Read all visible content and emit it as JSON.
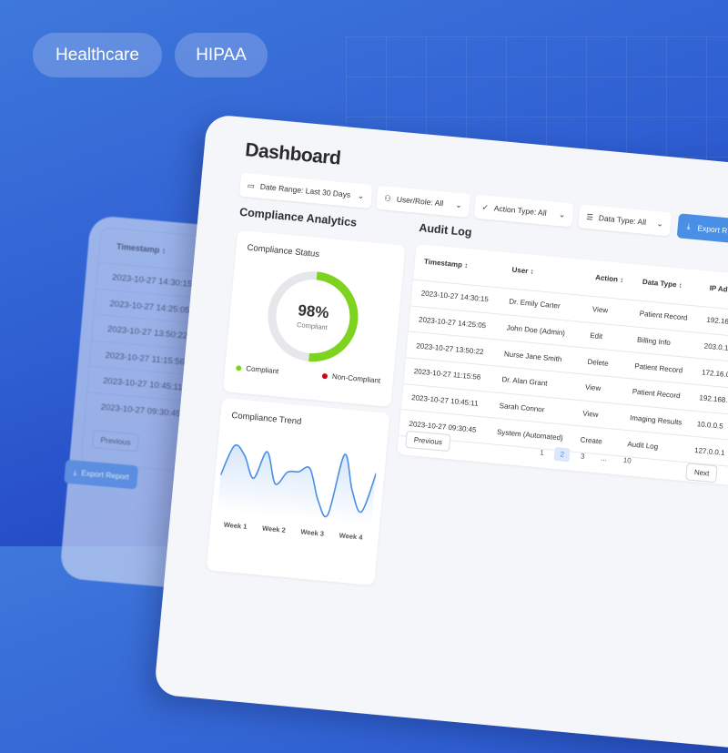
{
  "tags": [
    "Healthcare",
    "HIPAA"
  ],
  "background_card": {
    "header": "Timestamp",
    "rows": [
      "2023-10-27 14:30:15",
      "2023-10-27 14:25:05",
      "2023-10-27 13:50:22",
      "2023-10-27 11:15:56",
      "2023-10-27 10:45:11",
      "2023-10-27 09:30:45"
    ],
    "previous": "Previous",
    "export": "Export Report"
  },
  "dashboard": {
    "title": "Dashboard",
    "filters": [
      {
        "icon": "calendar-icon",
        "label": "Date Range: Last 30 Days"
      },
      {
        "icon": "user-icon",
        "label": "User/Role: All"
      },
      {
        "icon": "check-circle-icon",
        "label": "Action Type: All"
      },
      {
        "icon": "database-icon",
        "label": "Data Type: All"
      }
    ],
    "export_label": "Export R",
    "analytics_title": "Compliance Analytics",
    "status": {
      "title": "Compliance Status",
      "percent": 98,
      "percent_label": "98%",
      "sub": "Compliant",
      "legend": [
        {
          "label": "Compliant",
          "color": "#7ed321"
        },
        {
          "label": "Non-Compliant",
          "color": "#d0021b"
        }
      ],
      "track_color": "#e6e7ea"
    },
    "trend": {
      "title": "Compliance Trend",
      "labels": [
        "Week 1",
        "Week 2",
        "Week 3",
        "Week 4"
      ],
      "values": [
        45,
        88,
        76,
        45,
        84,
        40,
        58,
        60,
        66,
        22,
        4,
        90,
        40,
        12,
        68
      ],
      "color": "#4a8fe6"
    },
    "audit": {
      "title": "Audit Log",
      "headers": [
        "Timestamp",
        "User",
        "Action",
        "Data Type",
        "IP Ad"
      ],
      "rows": [
        [
          "2023-10-27 14:30:15",
          "Dr. Emily Carter",
          "View",
          "Patient Record",
          "192.16"
        ],
        [
          "2023-10-27 14:25:05",
          "John Doe (Admin)",
          "Edit",
          "Billing Info",
          "203.0.1"
        ],
        [
          "2023-10-27 13:50:22",
          "Nurse Jane Smith",
          "Delete",
          "Patient Record",
          "172.16.0"
        ],
        [
          "2023-10-27 11:15:56",
          "Dr. Alan Grant",
          "View",
          "Patient Record",
          "192.168.1"
        ],
        [
          "2023-10-27 10:45:11",
          "Sarah Connor",
          "View",
          "Imaging Results",
          "10.0.0.5"
        ],
        [
          "2023-10-27 09:30:45",
          "System (Automated)",
          "Create",
          "Audit Log",
          "127.0.0.1"
        ]
      ],
      "previous": "Previous",
      "next": "Next",
      "pages": [
        "1",
        "2",
        "3",
        "...",
        "10"
      ],
      "active_page": "2"
    }
  }
}
